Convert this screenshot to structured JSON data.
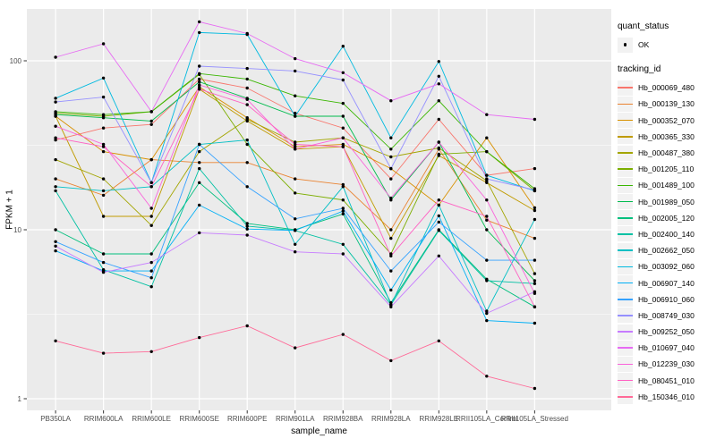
{
  "legend": {
    "quant_status_title": "quant_status",
    "quant_status_items": [
      {
        "label": "OK",
        "symbol": "point"
      }
    ],
    "tracking_id_title": "tracking_id"
  },
  "style": {
    "panel_bg": "#EBEBEB",
    "grid_color": "#FFFFFF",
    "axis_text_color": "#4D4D4D",
    "marker_color": "#000000",
    "legend_key_bg": "#F2F2F2"
  },
  "chart_data": {
    "type": "line",
    "xlabel": "sample_name",
    "ylabel": "FPKM + 1",
    "y_scale": "log10",
    "y_ticks": [
      1,
      10,
      100
    ],
    "y_minor_ticks": [
      3.162,
      31.62
    ],
    "ylim": [
      0.85,
      205
    ],
    "grid": true,
    "legend_position": "right",
    "marker": "point",
    "x_categories": [
      "PB350LA",
      "RRIM600LA",
      "RRIM600LE",
      "RRIM600SE",
      "RRIM600PE",
      "RRIM901LA",
      "RRIM928BA",
      "RRIM928LA",
      "RRIM928LE",
      "RRII105LA_Control",
      "RRII105LA_Stressed"
    ],
    "series": [
      {
        "name": "Hb_000069_480",
        "color": "#F8766D",
        "values": [
          34,
          40,
          42,
          78,
          69,
          49,
          40,
          20,
          45,
          21,
          23
        ]
      },
      {
        "name": "Hb_000139_130",
        "color": "#EA8331",
        "values": [
          20,
          16,
          26,
          25,
          25,
          20,
          18.5,
          10,
          30,
          11.4,
          8.9
        ]
      },
      {
        "name": "Hb_000352_070",
        "color": "#D89000",
        "values": [
          47,
          29,
          26,
          70,
          46,
          31,
          32,
          23,
          14,
          35,
          13.5
        ]
      },
      {
        "name": "Hb_000365_330",
        "color": "#C09B00",
        "values": [
          47,
          12,
          12,
          68,
          44,
          30,
          31,
          8.9,
          27.5,
          19,
          13
        ]
      },
      {
        "name": "Hb_000487_380",
        "color": "#A3A500",
        "values": [
          26,
          20,
          10.6,
          29,
          45,
          33,
          35,
          27,
          30.5,
          19.5,
          5.5
        ]
      },
      {
        "name": "Hb_001205_110",
        "color": "#7CAE00",
        "values": [
          49,
          47,
          50,
          83,
          32,
          16.5,
          15,
          7.2,
          28,
          29,
          17
        ]
      },
      {
        "name": "Hb_001489_100",
        "color": "#39B600",
        "values": [
          50,
          48,
          50,
          84,
          78,
          62,
          56,
          30,
          58,
          29,
          17.5
        ]
      },
      {
        "name": "Hb_001989_050",
        "color": "#00BB4E",
        "values": [
          48,
          46,
          44,
          75,
          60,
          47,
          47,
          15,
          33,
          10,
          5
        ]
      },
      {
        "name": "Hb_002005_120",
        "color": "#00BF7D",
        "values": [
          10,
          7.2,
          7.2,
          19,
          10.9,
          10,
          12.4,
          3.7,
          10,
          5.1,
          3.5
        ]
      },
      {
        "name": "Hb_002400_140",
        "color": "#00C1A3",
        "values": [
          17,
          5.8,
          4.6,
          23,
          10.5,
          9.9,
          8.2,
          3.6,
          9.9,
          5.0,
          4.8
        ]
      },
      {
        "name": "Hb_002662_050",
        "color": "#00BFC4",
        "values": [
          18,
          17,
          18,
          32,
          34,
          8.2,
          18,
          3.6,
          14,
          3.3,
          11.5
        ]
      },
      {
        "name": "Hb_003092_060",
        "color": "#00BAE0",
        "values": [
          60,
          79,
          19,
          147,
          143,
          47,
          122,
          35,
          99,
          21,
          17
        ]
      },
      {
        "name": "Hb_006907_140",
        "color": "#00B0F6",
        "values": [
          7.5,
          5.7,
          5.7,
          14,
          10.1,
          9.9,
          12.9,
          4.4,
          12.1,
          2.9,
          2.8
        ]
      },
      {
        "name": "Hb_006910_060",
        "color": "#35A2FF",
        "values": [
          8.5,
          6.4,
          5.2,
          32,
          18,
          11.6,
          13.4,
          5.7,
          11.1,
          6.6,
          6.6
        ]
      },
      {
        "name": "Hb_008749_030",
        "color": "#9590FF",
        "values": [
          57,
          61,
          19,
          93,
          90,
          87,
          77,
          23,
          81,
          20,
          17.2
        ]
      },
      {
        "name": "Hb_009252_050",
        "color": "#C77CFF",
        "values": [
          8,
          5.6,
          6.4,
          9.6,
          9.3,
          7.4,
          7.2,
          3.5,
          7.0,
          3.2,
          4.3
        ]
      },
      {
        "name": "Hb_010697_040",
        "color": "#E76BF3",
        "values": [
          105,
          126,
          50,
          170,
          145,
          103,
          85,
          58,
          73,
          48,
          45
        ]
      },
      {
        "name": "Hb_012239_030",
        "color": "#FA62DB",
        "values": [
          41,
          32,
          13.4,
          72,
          59,
          30,
          35,
          15.4,
          33,
          15,
          4.2
        ]
      },
      {
        "name": "Hb_080451_010",
        "color": "#FF61C3",
        "values": [
          35,
          31,
          18,
          68,
          55,
          32,
          31,
          7,
          15,
          12,
          3.5
        ]
      },
      {
        "name": "Hb_150346_010",
        "color": "#FF6A98",
        "values": [
          2.2,
          1.86,
          1.9,
          2.3,
          2.7,
          2.0,
          2.4,
          1.68,
          2.2,
          1.36,
          1.15
        ]
      }
    ]
  }
}
